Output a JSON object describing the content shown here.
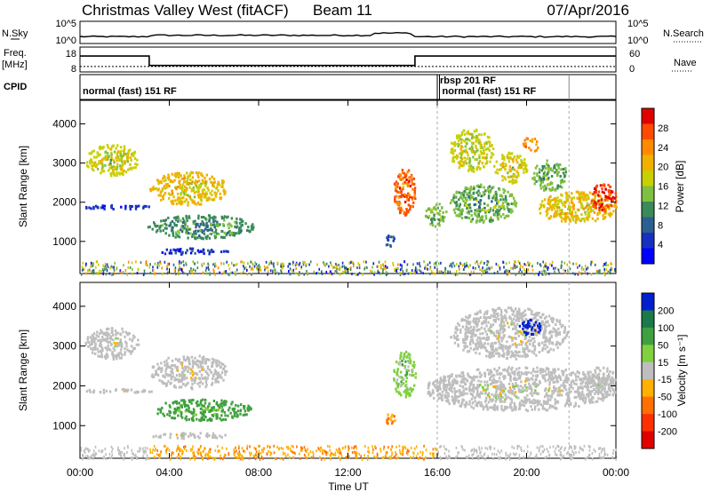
{
  "header": {
    "station": "Christmas Valley West (fitACF)",
    "beam": "Beam 11",
    "date": "07/Apr/2016"
  },
  "nsky_panel": {
    "label": "N.Sky",
    "left_ticks": [
      "10^5",
      "10^0"
    ],
    "right_ticks": [
      "10^5",
      "10^0"
    ],
    "right_label": "N.Search"
  },
  "freq_panel": {
    "label_line1": "Freq.",
    "label_line2": "[MHz]",
    "left_ticks": [
      "18",
      "8"
    ],
    "right_ticks": [
      "60",
      "0"
    ],
    "right_label": "Nave",
    "freq_steps": [
      {
        "t": 0,
        "mhz": 14.4
      },
      {
        "t": 3.1,
        "mhz": 10.6
      },
      {
        "t": 15.0,
        "mhz": 14.4
      },
      {
        "t": 24,
        "mhz": 14.4
      }
    ],
    "nave_level": 13
  },
  "cpid": {
    "label": "CPID",
    "segments": [
      {
        "start": 0,
        "end": 16.0,
        "row": 2,
        "text": "normal (fast) 151 RF"
      },
      {
        "start": 16.0,
        "end": 16.1,
        "row": 1,
        "text": "rbsp 201 RF"
      },
      {
        "start": 16.1,
        "end": 21.9,
        "row": 2,
        "text": "normal (fast) 151 RF"
      }
    ]
  },
  "power_panel": {
    "ylabel": "Slant Range [km]",
    "yticks": [
      "4000",
      "3000",
      "2000",
      "1000"
    ],
    "colorbar_label": "Power [dB]",
    "colorbar_ticks": [
      "28",
      "24",
      "20",
      "16",
      "12",
      "8",
      "4"
    ],
    "colorbar_colors": [
      "#e00000",
      "#ff4a00",
      "#ff8a00",
      "#f0b000",
      "#c8d000",
      "#80c040",
      "#3a8a5a",
      "#2a6090",
      "#1830c0",
      "#0000ff"
    ]
  },
  "velocity_panel": {
    "ylabel": "Slant Range [km]",
    "yticks": [
      "4000",
      "3000",
      "2000",
      "1000"
    ],
    "colorbar_label": "Velocity [m s⁻¹]",
    "colorbar_ticks": [
      "200",
      "100",
      "50",
      "15",
      "-15",
      "-50",
      "-100",
      "-200"
    ],
    "colorbar_colors": [
      "#0020d0",
      "#1a7a4a",
      "#40a040",
      "#80d040",
      "#bebebe",
      "#ffb000",
      "#ff7000",
      "#ff3000",
      "#e00000"
    ]
  },
  "time_axis": {
    "label": "Time UT",
    "ticks": [
      "00:00",
      "04:00",
      "08:00",
      "12:00",
      "16:00",
      "20:00",
      "00:00"
    ]
  },
  "chart_data": {
    "type": "heatmap",
    "x_range": [
      0,
      24
    ],
    "y_range_km": [
      180,
      4600
    ],
    "power_blobs": [
      {
        "t0": 0.2,
        "t1": 2.6,
        "r0": 2700,
        "r1": 3500,
        "db": 18
      },
      {
        "t0": 0.1,
        "t1": 3.3,
        "r0": 1850,
        "r1": 1950,
        "db": 6
      },
      {
        "t0": 3.1,
        "t1": 6.6,
        "r0": 1950,
        "r1": 2800,
        "db": 20
      },
      {
        "t0": 3.0,
        "t1": 7.8,
        "r0": 1100,
        "r1": 1700,
        "db": 12
      },
      {
        "t0": 3.1,
        "t1": 6.6,
        "r0": 700,
        "r1": 850,
        "db": 6
      },
      {
        "t0": 13.6,
        "t1": 14.1,
        "r0": 900,
        "r1": 1200,
        "db": 8
      },
      {
        "t0": 14.0,
        "t1": 15.0,
        "r0": 1700,
        "r1": 2900,
        "db": 26
      },
      {
        "t0": 15.4,
        "t1": 16.4,
        "r0": 1400,
        "r1": 2000,
        "db": 14
      },
      {
        "t0": 16.5,
        "t1": 19.5,
        "r0": 1500,
        "r1": 2500,
        "db": 14
      },
      {
        "t0": 16.5,
        "t1": 18.5,
        "r0": 2800,
        "r1": 3900,
        "db": 18
      },
      {
        "t0": 18.5,
        "t1": 20.0,
        "r0": 2500,
        "r1": 3300,
        "db": 18
      },
      {
        "t0": 19.8,
        "t1": 20.5,
        "r0": 3300,
        "r1": 3700,
        "db": 24
      },
      {
        "t0": 20.2,
        "t1": 21.8,
        "r0": 2300,
        "r1": 3100,
        "db": 14
      },
      {
        "t0": 20.4,
        "t1": 24.0,
        "r0": 1500,
        "r1": 2300,
        "db": 20
      },
      {
        "t0": 22.8,
        "t1": 24.0,
        "r0": 1800,
        "r1": 2500,
        "db": 28
      }
    ],
    "velocity_blobs": [
      {
        "t0": 0.2,
        "t1": 2.6,
        "r0": 2700,
        "r1": 3500,
        "v": 0
      },
      {
        "t0": 0.1,
        "t1": 3.3,
        "r0": 1850,
        "r1": 1950,
        "v": 0
      },
      {
        "t0": 3.1,
        "t1": 6.6,
        "r0": 1950,
        "r1": 2800,
        "v": 0
      },
      {
        "t0": 3.3,
        "t1": 7.7,
        "r0": 1150,
        "r1": 1700,
        "v": 40
      },
      {
        "t0": 3.1,
        "t1": 6.6,
        "r0": 700,
        "r1": 850,
        "v": 0
      },
      {
        "t0": 13.6,
        "t1": 14.1,
        "r0": 1050,
        "r1": 1350,
        "v": -50
      },
      {
        "t0": 14.0,
        "t1": 15.0,
        "r0": 1700,
        "r1": 2900,
        "v": 20
      },
      {
        "t0": 15.4,
        "t1": 24.0,
        "r0": 1400,
        "r1": 2500,
        "v": 0
      },
      {
        "t0": 16.5,
        "t1": 21.8,
        "r0": 2700,
        "r1": 4000,
        "v": 0
      },
      {
        "t0": 19.6,
        "t1": 20.6,
        "r0": 3300,
        "r1": 3700,
        "v": 200
      },
      {
        "t0": 22.5,
        "t1": 24.0,
        "r0": 1800,
        "r1": 2500,
        "v": 0
      }
    ],
    "ground_scatter": {
      "r0": 180,
      "r1": 520
    }
  }
}
